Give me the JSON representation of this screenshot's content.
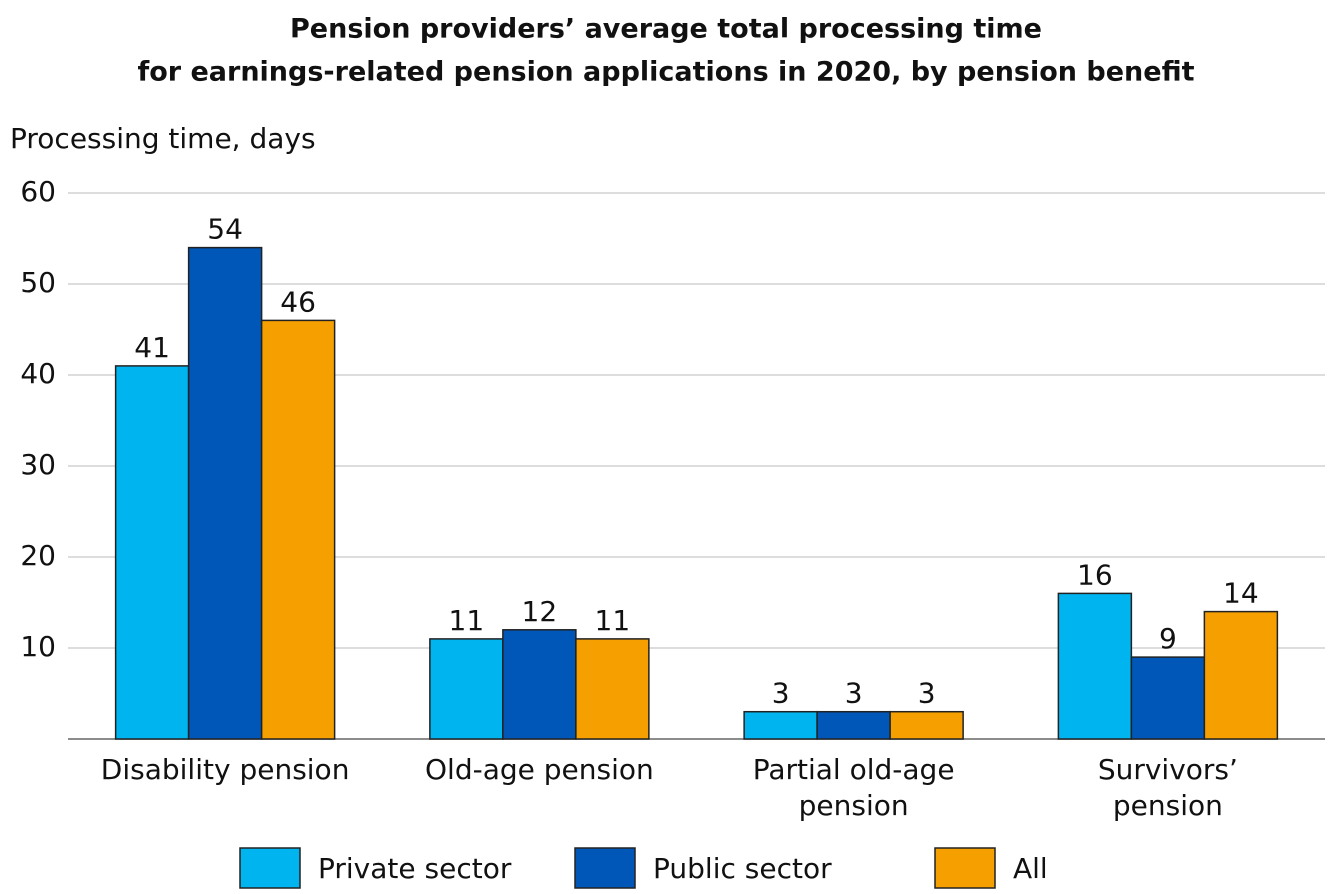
{
  "chart_data": {
    "type": "bar",
    "title": [
      "Pension providers’ average total processing time",
      "for earnings-related pension applications in 2020, by pension benefit"
    ],
    "y_label": "Processing time, days",
    "categories": [
      "Disability pension",
      "Old-age pension",
      "Partial old-age pension",
      "Survivors’ pension"
    ],
    "series": [
      {
        "name": "Private sector",
        "color": "#00b4f0",
        "values": [
          41,
          11,
          3,
          16
        ]
      },
      {
        "name": "Public sector",
        "color": "#0057b8",
        "values": [
          54,
          12,
          3,
          9
        ]
      },
      {
        "name": "All",
        "color": "#f5a000",
        "values": [
          46,
          11,
          3,
          14
        ]
      }
    ],
    "ylim": [
      0,
      60
    ],
    "yticks": [
      10,
      20,
      30,
      40,
      50,
      60
    ],
    "grid": true,
    "legend": "bottom"
  }
}
